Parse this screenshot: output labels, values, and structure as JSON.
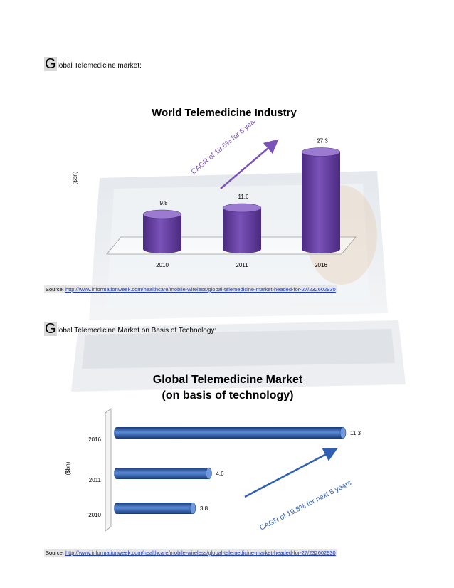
{
  "section1": {
    "initial": "G",
    "heading_rest": "lobal Telemedicine market:",
    "source_label": "Source:",
    "source_url": "http://www.informationweek.com/healthcare/mobile-wireless/global-telemedicine-market-headed-for-27/232602930"
  },
  "section2": {
    "initial": "G",
    "heading_rest": "lobal Telemedicine Market on Basis of Technology:",
    "source_label": "Source:",
    "source_url": "http://www.informationweek.com/healthcare/mobile-wireless/global-telemedicine-market-headed-for-27/232602930"
  },
  "colors": {
    "purple": "#7a52b8",
    "purple_dark": "#4a2a80",
    "blue": "#2f5fb0",
    "blue_dark": "#163a78",
    "link": "#1f3bbd"
  },
  "chart_data": [
    {
      "type": "bar",
      "title": "World Telemedicine Industry",
      "ylabel": "($bn)",
      "categories": [
        "2010",
        "2011",
        "2016"
      ],
      "values": [
        9.8,
        11.6,
        27.3
      ],
      "value_labels": [
        "9.8",
        "11.6",
        "27.3"
      ],
      "annotation": "CAGR of 18.6% for 5 years",
      "ylim": [
        0,
        30
      ]
    },
    {
      "type": "bar",
      "orientation": "horizontal",
      "title_line1": "Global Telemedicine Market",
      "title_line2": "(on basis of technology)",
      "ylabel": "($bn)",
      "categories": [
        "2016",
        "2011",
        "2010"
      ],
      "values": [
        11.3,
        4.6,
        3.8
      ],
      "value_labels": [
        "11.3",
        "4.6",
        "3.8"
      ],
      "annotation": "CAGR of 19.8% for next 5 years",
      "xlim": [
        0,
        11.3
      ]
    }
  ]
}
